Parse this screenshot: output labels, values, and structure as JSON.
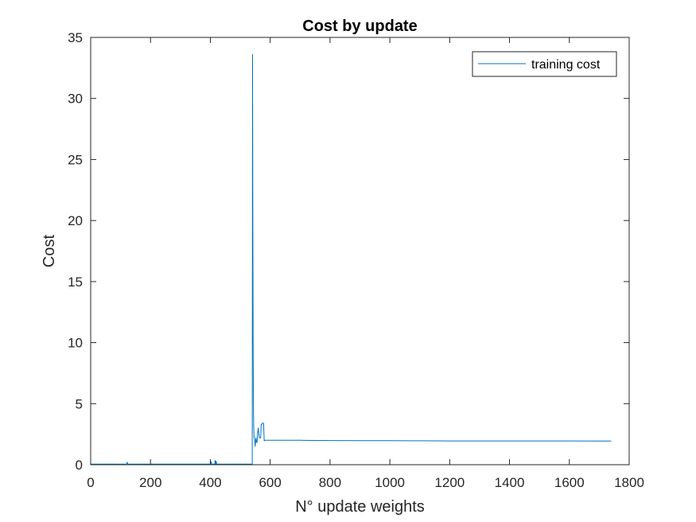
{
  "chart_data": {
    "type": "line",
    "title": "Cost by update",
    "xlabel": "N° update weights",
    "ylabel": "Cost",
    "xlim": [
      0,
      1800
    ],
    "ylim": [
      0,
      35
    ],
    "xticks": [
      0,
      200,
      400,
      600,
      800,
      1000,
      1200,
      1400,
      1600,
      1800
    ],
    "yticks": [
      0,
      5,
      10,
      15,
      20,
      25,
      30,
      35
    ],
    "grid": false,
    "legend_position": "top-right",
    "series": [
      {
        "name": "training cost",
        "color": "#0072BD",
        "x": [
          0,
          100,
          120,
          122,
          124,
          200,
          300,
          400,
          403,
          404,
          405,
          410,
          415,
          416,
          417,
          418,
          419,
          420,
          421,
          422,
          430,
          500,
          540,
          541,
          542,
          543,
          544,
          545,
          546,
          548,
          550,
          552,
          554,
          556,
          558,
          560,
          562,
          564,
          566,
          568,
          570,
          572,
          574,
          576,
          578,
          580,
          582,
          590,
          600,
          700,
          800,
          900,
          1000,
          1100,
          1200,
          1300,
          1400,
          1500,
          1600,
          1700,
          1740
        ],
        "y": [
          0.05,
          0.05,
          0.05,
          0.2,
          0.05,
          0.05,
          0.05,
          0.05,
          0.25,
          0.05,
          0.05,
          0.05,
          0.05,
          0.35,
          0.05,
          0.3,
          0.05,
          0.25,
          0.05,
          0.05,
          0.05,
          0.05,
          0.05,
          33.6,
          20,
          10,
          5,
          3,
          2.3,
          2.0,
          1.5,
          2.2,
          1.9,
          1.8,
          2.6,
          3.0,
          2.5,
          2.2,
          2.2,
          2.2,
          3.3,
          3.3,
          3.4,
          3.4,
          3.4,
          1.95,
          2.0,
          2.0,
          2.0,
          2.0,
          1.98,
          1.97,
          1.97,
          1.96,
          1.95,
          1.95,
          1.95,
          1.95,
          1.95,
          1.94,
          1.94
        ]
      }
    ]
  }
}
